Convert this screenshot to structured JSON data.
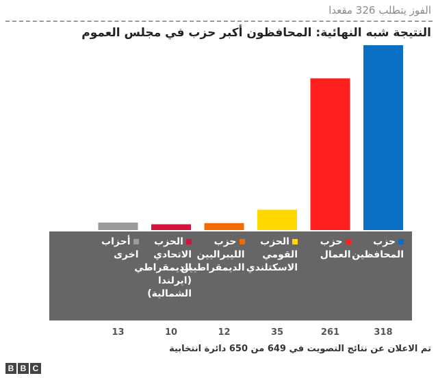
{
  "header": {
    "subtitle": "الفوز يتطلب 326 مقعدا",
    "title": "النتيجة شبه النهائية:  المحافظون أكبر حزب في  مجلس العموم"
  },
  "footnote": "تم الاعلان عن نتائج التصويت في 649 من 650 دائرة انتخابية",
  "brand": {
    "letters": [
      "B",
      "B",
      "C"
    ]
  },
  "chart_data": {
    "type": "bar",
    "ylim": [
      0,
      330
    ],
    "categories": [
      "حزب المحافظين",
      "حزب العمال",
      "الحزب القومي الاسكتلندي",
      "حزب الليبراليين الديمقراطيين",
      "الحزب الاتحادي الديمقراطي (ايرلندا الشمالية)",
      "أحزاب اخرى"
    ],
    "legend_lines": [
      [
        "حزب",
        "المحافظين"
      ],
      [
        "حزب",
        "العمال"
      ],
      [
        "الحزب",
        "القومي",
        "الاسكتلندي"
      ],
      [
        "حزب",
        "الليبراليين",
        "الديمقراطيين"
      ],
      [
        "الحزب",
        "الاتحادي",
        "الديمقراطي",
        "(ايرلندا",
        "الشمالية)"
      ],
      [
        "أحزاب",
        "اخرى"
      ]
    ],
    "values": [
      318,
      261,
      35,
      12,
      10,
      13
    ],
    "value_labels": [
      "318",
      "261",
      "35",
      "12",
      "10",
      "13"
    ],
    "colors": [
      "#0a6fc2",
      "#ff1f1f",
      "#ffd800",
      "#f26b00",
      "#d2143a",
      "#9b9b9b"
    ]
  }
}
